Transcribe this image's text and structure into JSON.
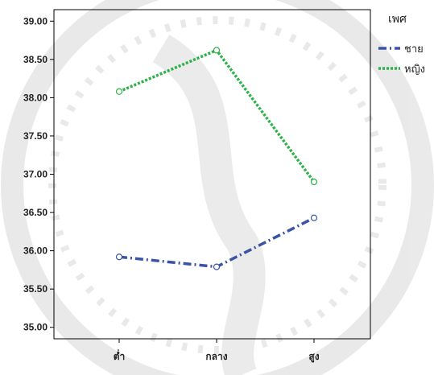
{
  "chart_data": {
    "type": "line",
    "categories": [
      "ต่ำ",
      "กลาง",
      "สูง"
    ],
    "series": [
      {
        "name": "ชาย",
        "values": [
          35.92,
          35.79,
          36.43
        ],
        "color": "#3a53a4",
        "dash": "dash-dot"
      },
      {
        "name": "หญิง",
        "values": [
          38.08,
          38.62,
          36.9
        ],
        "color": "#2db24a",
        "dash": "dotted"
      }
    ],
    "ylim": [
      34.85,
      39.15
    ],
    "yticks": [
      "35.00",
      "35.50",
      "36.00",
      "36.50",
      "37.00",
      "37.50",
      "38.00",
      "38.50",
      "39.00"
    ],
    "legend": {
      "title": "เพศ",
      "placement": "right"
    },
    "grid": false,
    "title": "",
    "xlabel": "",
    "ylabel": ""
  }
}
